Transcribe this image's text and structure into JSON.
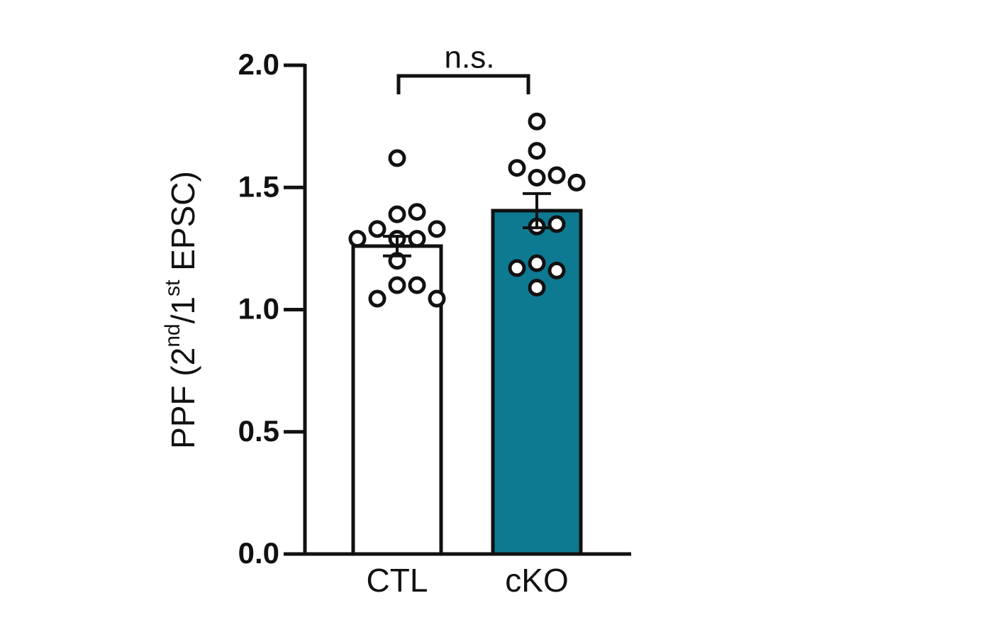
{
  "chart_data": {
    "type": "bar",
    "y_label": [
      {
        "text": "PPF (2"
      },
      {
        "text": "nd",
        "sup": true
      },
      {
        "text": "/1"
      },
      {
        "text": "st",
        "sup": true
      },
      {
        "text": " EPSC)"
      }
    ],
    "categories": [
      "CTL",
      "cKO"
    ],
    "values": [
      1.26,
      1.405
    ],
    "errors": [
      0.04,
      0.07
    ],
    "colors": [
      "#ffffff",
      "#0e7a92"
    ],
    "points": [
      [
        1.62,
        1.39,
        1.4,
        1.29,
        1.33,
        1.33,
        1.29,
        1.29,
        1.2,
        1.1,
        1.1,
        1.045,
        1.045
      ],
      [
        1.77,
        1.65,
        1.54,
        1.55,
        1.58,
        1.52,
        1.34,
        1.35,
        1.19,
        1.16,
        1.17,
        1.09
      ]
    ],
    "annotation": "n.s.",
    "ylim": [
      0,
      2.0
    ],
    "yticks": [
      {
        "value": 0,
        "label": "0.0"
      },
      {
        "value": 0.5,
        "label": "0.5"
      },
      {
        "value": 1.0,
        "label": "1.0"
      },
      {
        "value": 1.5,
        "label": "1.5"
      },
      {
        "value": 2.0,
        "label": "2.0"
      }
    ]
  }
}
